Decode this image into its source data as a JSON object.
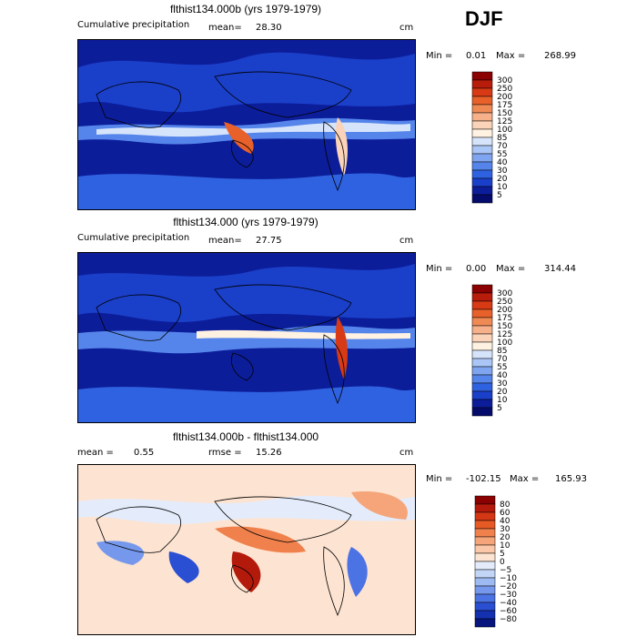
{
  "season": "DJF",
  "panels": [
    {
      "title": "flthist134.000b (yrs 1979-1979)",
      "field_label": "Cumulative precipitation",
      "mean_label": "mean=",
      "mean_value": "28.30",
      "units": "cm",
      "min_label": "Min =",
      "min_value": "0.01",
      "max_label": "Max =",
      "max_value": "268.99",
      "palette": "precip",
      "colorbar_levels": [
        "300",
        "250",
        "200",
        "175",
        "150",
        "125",
        "100",
        "85",
        "70",
        "55",
        "40",
        "30",
        "20",
        "10",
        "5"
      ]
    },
    {
      "title": "flthist134.000 (yrs 1979-1979)",
      "field_label": "Cumulative precipitation",
      "mean_label": "mean=",
      "mean_value": "27.75",
      "units": "cm",
      "min_label": "Min =",
      "min_value": "0.00",
      "max_label": "Max =",
      "max_value": "314.44",
      "palette": "precip",
      "colorbar_levels": [
        "300",
        "250",
        "200",
        "175",
        "150",
        "125",
        "100",
        "85",
        "70",
        "55",
        "40",
        "30",
        "20",
        "10",
        "5"
      ]
    },
    {
      "title": "flthist134.000b - flthist134.000",
      "mean_label": "mean =",
      "mean_value": "0.55",
      "rmse_label": "rmse =",
      "rmse_value": "15.26",
      "units": "cm",
      "min_label": "Min =",
      "min_value": "-102.15",
      "max_label": "Max =",
      "max_value": "165.93",
      "palette": "diff",
      "colorbar_levels": [
        "80",
        "60",
        "40",
        "30",
        "20",
        "10",
        "5",
        "0",
        "−5",
        "−10",
        "−20",
        "−30",
        "−40",
        "−60",
        "−80"
      ]
    }
  ],
  "palettes": {
    "precip": [
      "#8b0000",
      "#b81c0b",
      "#d73a14",
      "#e8602a",
      "#f08a55",
      "#f6b08a",
      "#fbd3b8",
      "#fff2e2",
      "#d6e4fb",
      "#aac6f6",
      "#7fa5f0",
      "#5585ea",
      "#2f62e0",
      "#1a3fc9",
      "#0c1d9a",
      "#050b6a"
    ],
    "diff": [
      "#8b0000",
      "#b41a0c",
      "#d33714",
      "#e65a25",
      "#f0814c",
      "#f6a57a",
      "#fbc7a8",
      "#fde3d1",
      "#e4ecfb",
      "#c2d5f7",
      "#9dbaf2",
      "#7698ec",
      "#4c73e3",
      "#2a4fd2",
      "#1431b0",
      "#07167e"
    ]
  },
  "chart_data": [
    {
      "type": "heatmap",
      "title": "flthist134.000b (yrs 1979-1979)",
      "subtitle": "Cumulative precipitation",
      "units": "cm",
      "statistics": {
        "mean": 28.3,
        "min": 0.01,
        "max": 268.99
      },
      "contour_levels": [
        5,
        10,
        20,
        30,
        40,
        55,
        70,
        85,
        100,
        125,
        150,
        175,
        200,
        250,
        300
      ]
    },
    {
      "type": "heatmap",
      "title": "flthist134.000 (yrs 1979-1979)",
      "subtitle": "Cumulative precipitation",
      "units": "cm",
      "statistics": {
        "mean": 27.75,
        "min": 0.0,
        "max": 314.44
      },
      "contour_levels": [
        5,
        10,
        20,
        30,
        40,
        55,
        70,
        85,
        100,
        125,
        150,
        175,
        200,
        250,
        300
      ]
    },
    {
      "type": "heatmap",
      "title": "flthist134.000b - flthist134.000",
      "units": "cm",
      "statistics": {
        "mean": 0.55,
        "rmse": 15.26,
        "min": -102.15,
        "max": 165.93
      },
      "contour_levels": [
        -80,
        -60,
        -40,
        -30,
        -20,
        -10,
        -5,
        0,
        5,
        10,
        20,
        30,
        40,
        60,
        80
      ]
    }
  ]
}
